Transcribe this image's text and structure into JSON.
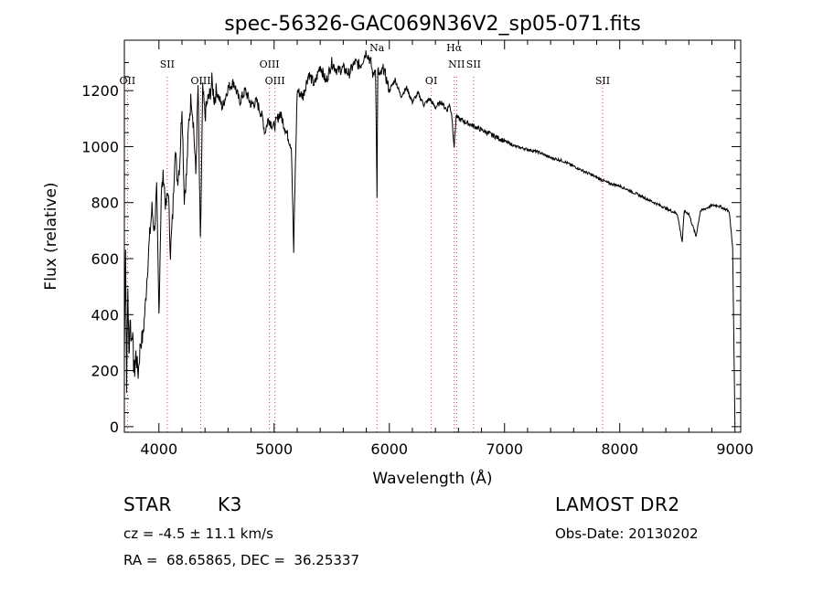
{
  "chart_data": {
    "type": "line",
    "title": "spec-56326-GAC069N36V2_sp05-071.fits",
    "xlabel": "Wavelength (Å)",
    "ylabel": "Flux (relative)",
    "xlim": [
      3700,
      9050
    ],
    "ylim": [
      -20,
      1380
    ],
    "x_ticks": [
      4000,
      5000,
      6000,
      7000,
      8000,
      9000
    ],
    "y_ticks": [
      0,
      200,
      400,
      600,
      800,
      1000,
      1200
    ],
    "series": [
      {
        "name": "flux",
        "x": [
          3700,
          3710,
          3720,
          3730,
          3740,
          3750,
          3760,
          3770,
          3780,
          3790,
          3800,
          3820,
          3840,
          3860,
          3880,
          3900,
          3920,
          3940,
          3960,
          3980,
          4000,
          4020,
          4040,
          4060,
          4080,
          4100,
          4120,
          4140,
          4160,
          4180,
          4200,
          4220,
          4240,
          4260,
          4280,
          4300,
          4320,
          4340,
          4360,
          4380,
          4400,
          4420,
          4440,
          4460,
          4480,
          4500,
          4550,
          4600,
          4650,
          4700,
          4750,
          4800,
          4850,
          4900,
          4920,
          4950,
          4980,
          5000,
          5050,
          5100,
          5150,
          5170,
          5180,
          5200,
          5250,
          5300,
          5350,
          5400,
          5450,
          5500,
          5550,
          5600,
          5650,
          5700,
          5750,
          5800,
          5840,
          5860,
          5880,
          5893,
          5900,
          5920,
          5950,
          6000,
          6050,
          6100,
          6150,
          6200,
          6250,
          6300,
          6350,
          6400,
          6450,
          6500,
          6520,
          6540,
          6563,
          6580,
          6600,
          6650,
          6700,
          6750,
          6800,
          6850,
          6900,
          6950,
          7000,
          7100,
          7200,
          7300,
          7400,
          7500,
          7600,
          7700,
          7800,
          7900,
          8000,
          8100,
          8200,
          8300,
          8400,
          8450,
          8500,
          8542,
          8560,
          8600,
          8662,
          8700,
          8750,
          8800,
          8850,
          8900,
          8950,
          8980,
          9000
        ],
        "y": [
          250,
          650,
          150,
          500,
          250,
          400,
          300,
          350,
          220,
          200,
          260,
          190,
          300,
          320,
          420,
          560,
          680,
          780,
          700,
          840,
          400,
          830,
          900,
          780,
          850,
          620,
          760,
          1000,
          880,
          940,
          1150,
          820,
          900,
          1090,
          1180,
          1080,
          900,
          1220,
          650,
          1200,
          1110,
          1160,
          1180,
          1230,
          1170,
          1200,
          1140,
          1210,
          1230,
          1160,
          1200,
          1150,
          1160,
          1100,
          1050,
          1100,
          1080,
          1070,
          1120,
          1060,
          1000,
          620,
          850,
          1200,
          1180,
          1260,
          1220,
          1290,
          1230,
          1300,
          1270,
          1280,
          1260,
          1300,
          1290,
          1340,
          1300,
          1250,
          1290,
          830,
          1270,
          1250,
          1280,
          1200,
          1240,
          1180,
          1210,
          1160,
          1190,
          1150,
          1170,
          1140,
          1160,
          1130,
          1150,
          1120,
          1000,
          1110,
          1100,
          1090,
          1080,
          1070,
          1060,
          1050,
          1040,
          1030,
          1020,
          1000,
          990,
          980,
          960,
          950,
          930,
          910,
          890,
          870,
          860,
          840,
          820,
          800,
          780,
          770,
          760,
          660,
          770,
          760,
          680,
          770,
          780,
          790,
          790,
          780,
          770,
          640,
          10
        ]
      }
    ],
    "line_markers": [
      {
        "label": "OII",
        "x": 3727
      },
      {
        "label": "SII",
        "x": 4072
      },
      {
        "label": "OIII",
        "x": 4363
      },
      {
        "label": "OIII",
        "x": 4959
      },
      {
        "label": "OIII",
        "x": 5007
      },
      {
        "label": "Na",
        "x": 5893
      },
      {
        "label": "OI",
        "x": 6364
      },
      {
        "label": "Hα",
        "x": 6563
      },
      {
        "label": "NII",
        "x": 6584
      },
      {
        "label": "SII",
        "x": 6731
      },
      {
        "label": "SII",
        "x": 7851
      }
    ],
    "colors": {
      "spectrum": "#000000",
      "marker": "#d04040"
    }
  },
  "info": {
    "class_label": "STAR",
    "subclass": "K3",
    "survey": "LAMOST DR2",
    "redshift": "cz = -4.5 ± 11.1 km/s",
    "obs_date": "Obs-Date: 20130202",
    "coords": "RA =  68.65865, DEC =  36.25337"
  }
}
